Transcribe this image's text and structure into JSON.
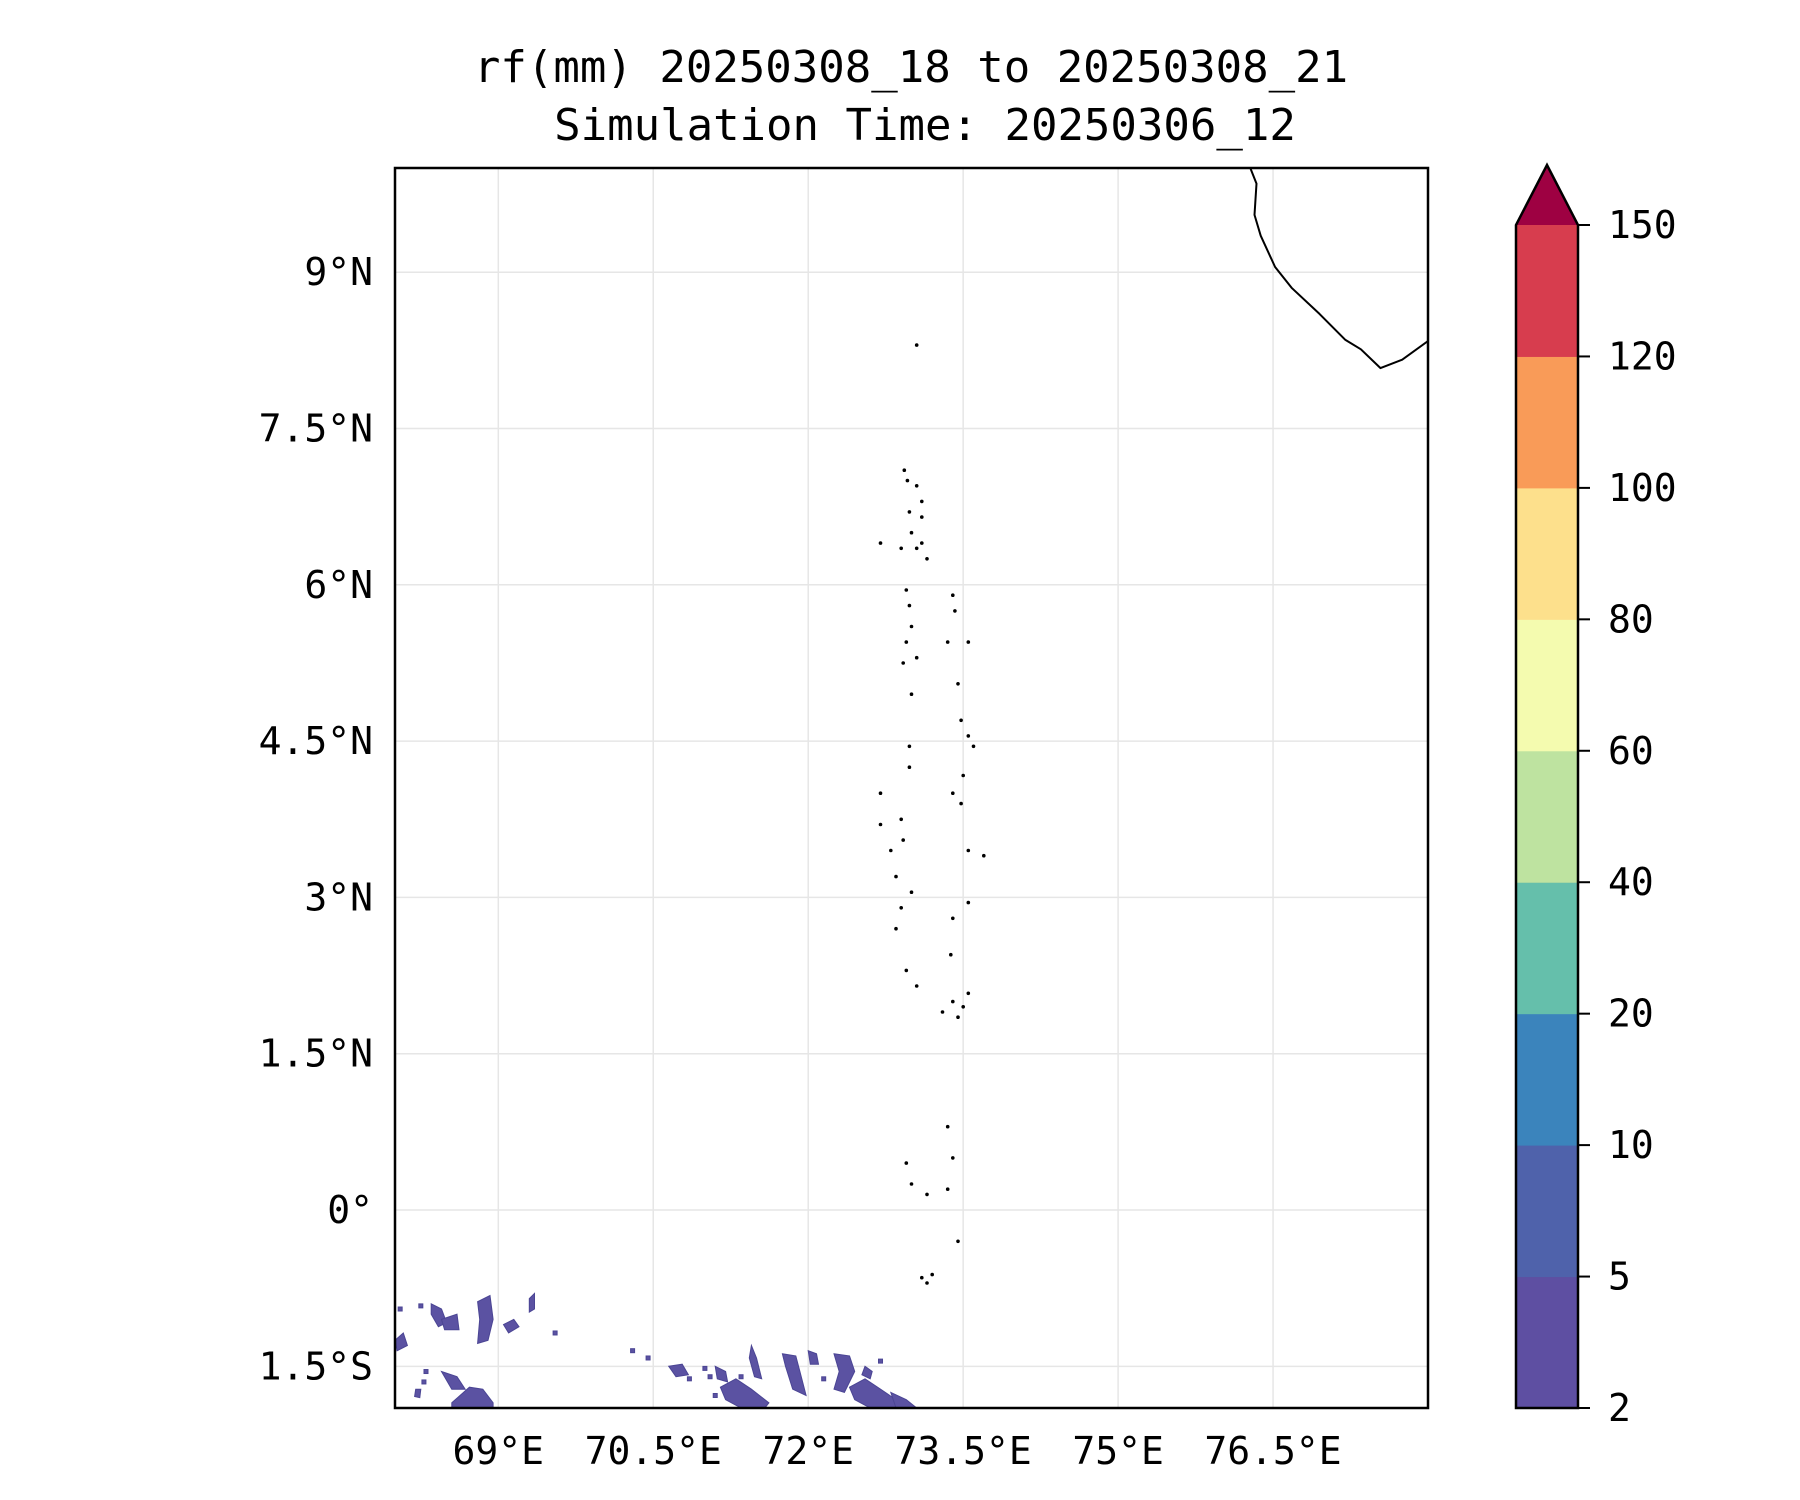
{
  "map": {
    "title_line1": "rf(mm) 20250308_18 to 20250308_21",
    "title_line2": "Simulation Time: 20250306_12",
    "extent": {
      "lon": [
        68.0,
        78.0
      ],
      "lat": [
        -1.9,
        10.0
      ]
    },
    "lon_ticks": [
      {
        "value": 69.0,
        "label": "69°E"
      },
      {
        "value": 70.5,
        "label": "70.5°E"
      },
      {
        "value": 72.0,
        "label": "72°E"
      },
      {
        "value": 73.5,
        "label": "73.5°E"
      },
      {
        "value": 75.0,
        "label": "75°E"
      },
      {
        "value": 76.5,
        "label": "76.5°E"
      }
    ],
    "lat_ticks": [
      {
        "value": 9.0,
        "label": "9°N"
      },
      {
        "value": 7.5,
        "label": "7.5°N"
      },
      {
        "value": 6.0,
        "label": "6°N"
      },
      {
        "value": 4.5,
        "label": "4.5°N"
      },
      {
        "value": 3.0,
        "label": "3°N"
      },
      {
        "value": 1.5,
        "label": "1.5°N"
      },
      {
        "value": 0.0,
        "label": "0°"
      },
      {
        "value": -1.5,
        "label": "1.5°S"
      }
    ],
    "grid": true,
    "coastline_india": [
      [
        76.28,
        10.0
      ],
      [
        76.34,
        9.85
      ],
      [
        76.32,
        9.55
      ],
      [
        76.38,
        9.35
      ],
      [
        76.52,
        9.05
      ],
      [
        76.68,
        8.85
      ],
      [
        76.95,
        8.6
      ],
      [
        77.2,
        8.35
      ],
      [
        77.35,
        8.26
      ],
      [
        77.54,
        8.08
      ],
      [
        77.75,
        8.16
      ],
      [
        78.0,
        8.34
      ]
    ],
    "maldives_islands": [
      [
        73.05,
        8.3
      ],
      [
        72.93,
        7.1
      ],
      [
        72.96,
        7.0
      ],
      [
        73.05,
        6.95
      ],
      [
        73.1,
        6.8
      ],
      [
        72.98,
        6.7
      ],
      [
        73.1,
        6.65
      ],
      [
        73.0,
        6.5
      ],
      [
        73.1,
        6.4
      ],
      [
        73.15,
        6.25
      ],
      [
        72.7,
        6.4
      ],
      [
        72.9,
        6.35
      ],
      [
        73.05,
        6.35
      ],
      [
        72.95,
        5.95
      ],
      [
        72.98,
        5.8
      ],
      [
        73.0,
        5.6
      ],
      [
        73.4,
        5.9
      ],
      [
        73.42,
        5.75
      ],
      [
        72.95,
        5.45
      ],
      [
        73.05,
        5.3
      ],
      [
        72.92,
        5.25
      ],
      [
        73.0,
        4.95
      ],
      [
        73.35,
        5.45
      ],
      [
        73.55,
        5.45
      ],
      [
        73.45,
        5.05
      ],
      [
        73.48,
        4.7
      ],
      [
        73.55,
        4.55
      ],
      [
        73.6,
        4.45
      ],
      [
        72.98,
        4.45
      ],
      [
        72.98,
        4.25
      ],
      [
        73.5,
        4.17
      ],
      [
        73.4,
        4.0
      ],
      [
        73.48,
        3.9
      ],
      [
        72.7,
        4.0
      ],
      [
        72.9,
        3.75
      ],
      [
        72.7,
        3.7
      ],
      [
        72.92,
        3.55
      ],
      [
        72.8,
        3.45
      ],
      [
        73.55,
        3.45
      ],
      [
        73.7,
        3.4
      ],
      [
        72.85,
        3.2
      ],
      [
        73.0,
        3.05
      ],
      [
        72.9,
        2.9
      ],
      [
        73.4,
        2.8
      ],
      [
        73.55,
        2.95
      ],
      [
        72.85,
        2.7
      ],
      [
        73.38,
        2.45
      ],
      [
        72.95,
        2.3
      ],
      [
        73.05,
        2.15
      ],
      [
        73.4,
        2.0
      ],
      [
        73.5,
        1.95
      ],
      [
        73.55,
        2.08
      ],
      [
        73.45,
        1.85
      ],
      [
        73.3,
        1.9
      ],
      [
        73.35,
        0.8
      ],
      [
        73.4,
        0.5
      ],
      [
        72.95,
        0.45
      ],
      [
        73.0,
        0.25
      ],
      [
        73.15,
        0.15
      ],
      [
        73.35,
        0.2
      ],
      [
        73.45,
        -0.3
      ],
      [
        73.1,
        -0.65
      ],
      [
        73.15,
        -0.7
      ],
      [
        73.2,
        -0.62
      ]
    ],
    "rain_cells": [
      [
        [
          68.0,
          -1.25
        ],
        [
          68.08,
          -1.18
        ],
        [
          68.12,
          -1.3
        ],
        [
          68.02,
          -1.35
        ]
      ],
      [
        [
          68.35,
          -0.9
        ],
        [
          68.45,
          -0.95
        ],
        [
          68.5,
          -1.08
        ],
        [
          68.42,
          -1.12
        ],
        [
          68.35,
          -1.0
        ]
      ],
      [
        [
          68.45,
          -1.05
        ],
        [
          68.6,
          -1.0
        ],
        [
          68.62,
          -1.15
        ],
        [
          68.48,
          -1.15
        ]
      ],
      [
        [
          68.8,
          -0.88
        ],
        [
          68.92,
          -0.82
        ],
        [
          68.95,
          -1.05
        ],
        [
          68.9,
          -1.25
        ],
        [
          68.8,
          -1.28
        ],
        [
          68.82,
          -1.05
        ]
      ],
      [
        [
          69.05,
          -1.1
        ],
        [
          69.15,
          -1.05
        ],
        [
          69.2,
          -1.12
        ],
        [
          69.1,
          -1.18
        ]
      ],
      [
        [
          69.3,
          -0.85
        ],
        [
          69.35,
          -0.8
        ],
        [
          69.35,
          -0.95
        ],
        [
          69.3,
          -0.98
        ]
      ],
      [
        [
          68.45,
          -1.55
        ],
        [
          68.6,
          -1.6
        ],
        [
          68.68,
          -1.72
        ],
        [
          68.55,
          -1.72
        ]
      ],
      [
        [
          68.2,
          -1.72
        ],
        [
          68.25,
          -1.72
        ],
        [
          68.24,
          -1.8
        ],
        [
          68.19,
          -1.79
        ]
      ],
      [
        [
          68.55,
          -1.85
        ],
        [
          68.72,
          -1.7
        ],
        [
          68.85,
          -1.72
        ],
        [
          68.95,
          -1.85
        ],
        [
          68.95,
          -1.9
        ],
        [
          68.55,
          -1.9
        ]
      ],
      [
        [
          70.65,
          -1.5
        ],
        [
          70.78,
          -1.48
        ],
        [
          70.84,
          -1.58
        ],
        [
          70.72,
          -1.6
        ]
      ],
      [
        [
          71.1,
          -1.5
        ],
        [
          71.2,
          -1.55
        ],
        [
          71.22,
          -1.65
        ],
        [
          71.12,
          -1.62
        ]
      ],
      [
        [
          71.15,
          -1.7
        ],
        [
          71.3,
          -1.62
        ],
        [
          71.45,
          -1.72
        ],
        [
          71.62,
          -1.85
        ],
        [
          71.58,
          -1.9
        ],
        [
          71.35,
          -1.9
        ],
        [
          71.2,
          -1.82
        ]
      ],
      [
        [
          71.45,
          -1.3
        ],
        [
          71.5,
          -1.42
        ],
        [
          71.55,
          -1.62
        ],
        [
          71.48,
          -1.6
        ],
        [
          71.43,
          -1.42
        ]
      ],
      [
        [
          71.75,
          -1.38
        ],
        [
          71.88,
          -1.4
        ],
        [
          71.92,
          -1.55
        ],
        [
          71.98,
          -1.78
        ],
        [
          71.85,
          -1.72
        ],
        [
          71.78,
          -1.5
        ]
      ],
      [
        [
          72.0,
          -1.35
        ],
        [
          72.08,
          -1.38
        ],
        [
          72.1,
          -1.48
        ],
        [
          72.02,
          -1.48
        ]
      ],
      [
        [
          72.25,
          -1.38
        ],
        [
          72.4,
          -1.4
        ],
        [
          72.45,
          -1.55
        ],
        [
          72.35,
          -1.75
        ],
        [
          72.25,
          -1.72
        ],
        [
          72.3,
          -1.55
        ]
      ],
      [
        [
          72.4,
          -1.7
        ],
        [
          72.55,
          -1.62
        ],
        [
          72.7,
          -1.72
        ],
        [
          72.85,
          -1.82
        ],
        [
          72.9,
          -1.9
        ],
        [
          72.6,
          -1.9
        ],
        [
          72.45,
          -1.82
        ]
      ],
      [
        [
          72.55,
          -1.5
        ],
        [
          72.62,
          -1.55
        ],
        [
          72.6,
          -1.62
        ],
        [
          72.52,
          -1.58
        ]
      ],
      [
        [
          72.8,
          -1.75
        ],
        [
          72.95,
          -1.82
        ],
        [
          73.05,
          -1.9
        ],
        [
          72.85,
          -1.9
        ]
      ]
    ],
    "rain_specks": [
      [
        68.05,
        -0.95
      ],
      [
        68.25,
        -0.92
      ],
      [
        68.3,
        -1.55
      ],
      [
        68.28,
        -1.65
      ],
      [
        69.55,
        -1.18
      ],
      [
        70.3,
        -1.35
      ],
      [
        70.45,
        -1.42
      ],
      [
        71.0,
        -1.52
      ],
      [
        71.05,
        -1.6
      ],
      [
        71.1,
        -1.78
      ],
      [
        71.35,
        -1.6
      ],
      [
        72.15,
        -1.62
      ],
      [
        72.7,
        -1.45
      ],
      [
        70.85,
        -1.62
      ]
    ]
  },
  "colorbar": {
    "levels": [
      2,
      5,
      10,
      20,
      40,
      60,
      80,
      100,
      120,
      150
    ],
    "labels": [
      "2",
      "5",
      "10",
      "20",
      "40",
      "60",
      "80",
      "100",
      "120",
      "150"
    ],
    "colors": [
      "#5e4fa2",
      "#4f62ab",
      "#3b84bc",
      "#65bfab",
      "#bee3a0",
      "#f4fbaf",
      "#fde08c",
      "#f99b58",
      "#d73d4e"
    ],
    "extend_color": "#9e0142",
    "extend": "max"
  }
}
